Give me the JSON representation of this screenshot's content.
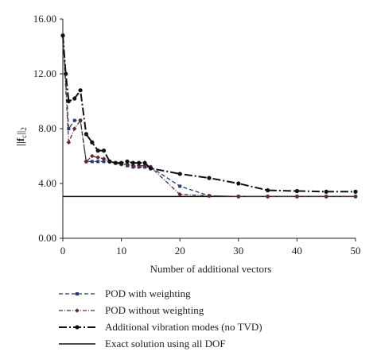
{
  "chart_data": {
    "type": "line",
    "title": "",
    "xlabel": "Number of additional vectors",
    "ylabel": "||f_c||_2",
    "ylabel_main": "||f",
    "ylabel_sub": "c",
    "ylabel_tail": "||",
    "ylabel_tail_sub": "2",
    "xlim": [
      0,
      50
    ],
    "ylim": [
      0,
      16
    ],
    "x_ticks": [
      "0",
      "10",
      "20",
      "30",
      "40",
      "50"
    ],
    "y_ticks": [
      "0.00",
      "4.00",
      "8.00",
      "12.00",
      "16.00"
    ],
    "legend_position": "bottom",
    "series": [
      {
        "name": "POD with weighting",
        "color": "#2a3a6e",
        "style": "dashed",
        "marker": "square",
        "x": [
          0,
          1,
          2,
          3,
          4,
          5,
          6,
          7,
          8,
          9,
          10,
          11,
          12,
          13,
          14,
          15,
          20,
          25,
          30,
          35,
          40,
          45,
          50
        ],
        "y": [
          14.8,
          8.0,
          8.6,
          8.6,
          5.6,
          5.6,
          5.6,
          5.6,
          5.6,
          5.5,
          5.4,
          5.3,
          5.2,
          5.2,
          5.2,
          5.2,
          3.8,
          3.1,
          3.05,
          3.05,
          3.05,
          3.05,
          3.05
        ]
      },
      {
        "name": "POD without weighting",
        "color": "#5a2a3a",
        "style": "dash-dot",
        "marker": "diamond",
        "x": [
          0,
          1,
          2,
          3,
          4,
          5,
          6,
          7,
          8,
          9,
          10,
          11,
          12,
          13,
          14,
          15,
          20,
          25,
          30,
          35,
          40,
          45,
          50
        ],
        "y": [
          14.8,
          7.0,
          8.0,
          8.6,
          5.6,
          6.0,
          5.9,
          5.8,
          5.6,
          5.5,
          5.4,
          5.4,
          5.3,
          5.3,
          5.3,
          5.2,
          3.2,
          3.1,
          3.05,
          3.05,
          3.05,
          3.05,
          3.05
        ]
      },
      {
        "name": "Additional vibration modes (no TVD)",
        "color": "#111111",
        "style": "dash-dot-long",
        "marker": "circle",
        "x": [
          0,
          0.5,
          1,
          2,
          3,
          4,
          5,
          6,
          7,
          8,
          9,
          10,
          11,
          12,
          13,
          14,
          15,
          20,
          25,
          30,
          35,
          40,
          45,
          50
        ],
        "y": [
          14.8,
          12.0,
          10.0,
          10.2,
          10.8,
          7.6,
          7.0,
          6.4,
          6.4,
          5.6,
          5.5,
          5.5,
          5.6,
          5.5,
          5.5,
          5.5,
          5.1,
          4.7,
          4.4,
          4.0,
          3.5,
          3.45,
          3.4,
          3.4
        ]
      },
      {
        "name": "Exact solution using all DOF",
        "color": "#111111",
        "style": "solid",
        "marker": "none",
        "x": [
          0,
          50
        ],
        "y": [
          3.05,
          3.05
        ]
      }
    ]
  }
}
